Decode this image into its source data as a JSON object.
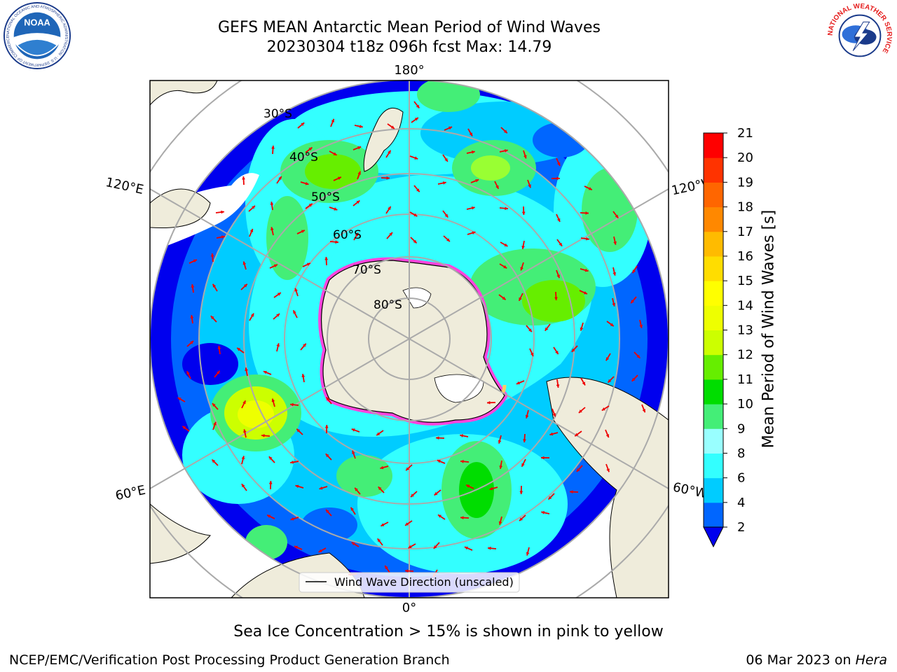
{
  "header": {
    "title_line1": "GEFS MEAN Antarctic Mean Period of Wind Waves",
    "title_line2": "20230304 t18z 096h fcst   Max: 14.79"
  },
  "logos": {
    "left": "NOAA",
    "left_ring_text": "NATIONAL OCEANIC AND ATMOSPHERIC ADMINISTRATION · U.S. DEPARTMENT OF COMMERCE",
    "right_ring_text": "NATIONAL WEATHER SERVICE"
  },
  "map": {
    "projection": "south-polar-stereographic",
    "longitude_labels": {
      "top": "180°",
      "bottom": "0°",
      "upper_left": "120°E",
      "upper_right": "120°W",
      "lower_left": "60°E",
      "lower_right": "60°W"
    },
    "latitude_labels": [
      "30°S",
      "40°S",
      "50°S",
      "60°S",
      "70°S",
      "80°S"
    ],
    "legend_label": "Wind Wave Direction (unscaled)"
  },
  "colorbar": {
    "label": "Mean Period of Wind Waves [s]",
    "ticks": [
      "2",
      "4",
      "6",
      "8",
      "9",
      "10",
      "11",
      "12",
      "13",
      "14",
      "15",
      "16",
      "17",
      "18",
      "19",
      "20",
      "21"
    ],
    "colors": [
      "#0066ff",
      "#00ccff",
      "#33ffff",
      "#99ffff",
      "#44ee77",
      "#00dd00",
      "#66ee00",
      "#ccff00",
      "#eeff00",
      "#ffff00",
      "#ffdd00",
      "#ffbb00",
      "#ff8800",
      "#ff6600",
      "#ff3300",
      "#ff0000"
    ],
    "under_color": "#0000ee"
  },
  "captions": {
    "ice_note": "Sea Ice Concentration > 15% is shown in pink to yellow",
    "footer_left": "NCEP/EMC/Verification Post Processing Product Generation Branch",
    "footer_date": "06 Mar 2023 on ",
    "footer_machine": "Hera"
  }
}
